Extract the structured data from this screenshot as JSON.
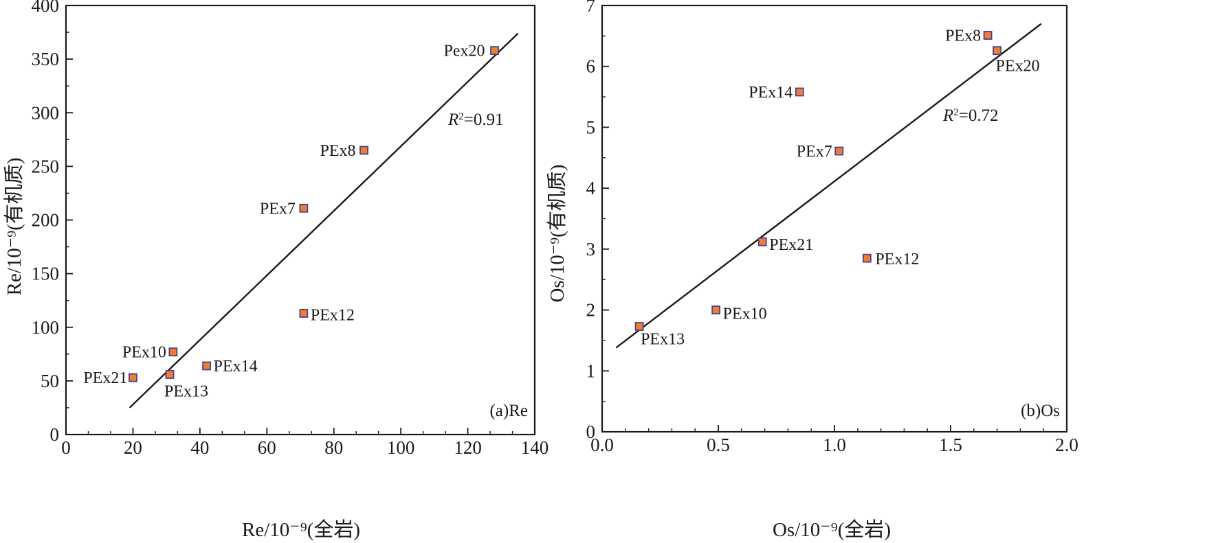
{
  "chart_data": [
    {
      "type": "scatter",
      "panel_label": "(a)Re",
      "xlabel": "Re/10⁻⁹(全岩)",
      "ylabel": "Re/10⁻⁹(有机质)",
      "xlim": [
        0,
        140
      ],
      "ylim": [
        0,
        400
      ],
      "xticks": [
        "0",
        "20",
        "40",
        "60",
        "80",
        "100",
        "120",
        "140"
      ],
      "yticks": [
        "0",
        "50",
        "100",
        "150",
        "200",
        "250",
        "300",
        "350",
        "400"
      ],
      "points": [
        {
          "label": "Pex20",
          "x": 128,
          "y": 358
        },
        {
          "label": "PEx8",
          "x": 89,
          "y": 265
        },
        {
          "label": "PEx7",
          "x": 71,
          "y": 211
        },
        {
          "label": "PEx12",
          "x": 71,
          "y": 113
        },
        {
          "label": "PEx10",
          "x": 32,
          "y": 77
        },
        {
          "label": "PEx14",
          "x": 42,
          "y": 64
        },
        {
          "label": "PEx13",
          "x": 31,
          "y": 56
        },
        {
          "label": "PEx21",
          "x": 20,
          "y": 53
        }
      ],
      "fit_line": {
        "x": [
          19,
          135
        ],
        "y": [
          25,
          374
        ]
      },
      "r2": {
        "symbol": "R",
        "exponent": "2",
        "value": "=0.91"
      },
      "grid": false,
      "marker_fill": "#f07f2a",
      "marker_stroke": "#4b3f9c"
    },
    {
      "type": "scatter",
      "panel_label": "(b)Os",
      "xlabel": "Os/10⁻⁹(全岩)",
      "ylabel": "Os/10⁻⁹(有机质)",
      "xlim": [
        0,
        2.0
      ],
      "ylim": [
        0,
        7
      ],
      "xticks": [
        "0.0",
        "0.5",
        "1.0",
        "1.5",
        "2.0"
      ],
      "yticks": [
        "0",
        "1",
        "2",
        "3",
        "4",
        "5",
        "6",
        "7"
      ],
      "points": [
        {
          "label": "PEx8",
          "x": 1.66,
          "y": 6.51
        },
        {
          "label": "PEx20",
          "x": 1.7,
          "y": 6.26
        },
        {
          "label": "PEx14",
          "x": 0.85,
          "y": 5.58
        },
        {
          "label": "PEx7",
          "x": 1.02,
          "y": 4.61
        },
        {
          "label": "PEx21",
          "x": 0.69,
          "y": 3.12
        },
        {
          "label": "PEx12",
          "x": 1.14,
          "y": 2.85
        },
        {
          "label": "PEx10",
          "x": 0.49,
          "y": 2.0
        },
        {
          "label": "PEx13",
          "x": 0.16,
          "y": 1.73
        }
      ],
      "fit_line": {
        "x": [
          0.06,
          1.89
        ],
        "y": [
          1.38,
          6.7
        ]
      },
      "r2": {
        "symbol": "R",
        "exponent": "2",
        "value": "=0.72"
      },
      "grid": false,
      "marker_fill": "#f07f2a",
      "marker_stroke": "#4b3f9c"
    }
  ]
}
